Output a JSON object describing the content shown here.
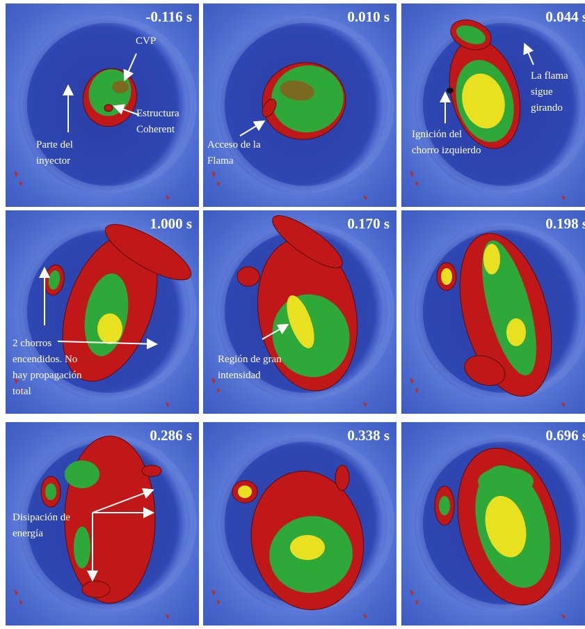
{
  "panels": [
    {
      "time": "-0.116 s",
      "annotations": [
        {
          "lines": [
            "CVP"
          ]
        },
        {
          "lines": [
            "Estructura",
            "Coherent"
          ]
        },
        {
          "lines": [
            "Parte del",
            "inyector"
          ]
        }
      ]
    },
    {
      "time": "0.010 s",
      "annotations": [
        {
          "lines": [
            "Acceso de la",
            "Flama"
          ]
        }
      ]
    },
    {
      "time": "0.044 s",
      "annotations": [
        {
          "lines": [
            "La flama",
            "sigue",
            "girando"
          ]
        },
        {
          "lines": [
            "Ignición del",
            "chorro izquierdo"
          ]
        }
      ]
    },
    {
      "time": "1.000 s",
      "annotations": [
        {
          "lines": [
            "2 chorros",
            "encendidos. No",
            "hay propagación",
            "total"
          ]
        }
      ]
    },
    {
      "time": "0.170 s",
      "annotations": [
        {
          "lines": [
            "Región de gran",
            "intensidad"
          ]
        }
      ]
    },
    {
      "time": "0.198 s",
      "annotations": []
    },
    {
      "time": "0.286 s",
      "annotations": [
        {
          "lines": [
            "Disipación de",
            "energía"
          ]
        }
      ]
    },
    {
      "time": "0.338 s",
      "annotations": []
    },
    {
      "time": "0.696 s",
      "annotations": []
    }
  ]
}
